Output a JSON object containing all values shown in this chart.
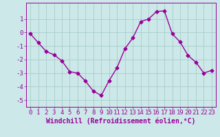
{
  "x": [
    0,
    1,
    2,
    3,
    4,
    5,
    6,
    7,
    8,
    9,
    10,
    11,
    12,
    13,
    14,
    15,
    16,
    17,
    18,
    19,
    20,
    21,
    22,
    23
  ],
  "y": [
    -0.1,
    -0.75,
    -1.4,
    -1.65,
    -2.1,
    -2.9,
    -3.0,
    -3.6,
    -4.35,
    -4.65,
    -3.55,
    -2.6,
    -1.2,
    -0.4,
    0.8,
    1.0,
    1.55,
    1.6,
    -0.1,
    -0.7,
    -1.7,
    -2.2,
    -3.0,
    -2.8
  ],
  "line_color": "#990099",
  "marker": "D",
  "marker_size": 2.5,
  "bg_color": "#cce8e8",
  "grid_color": "#b0d0d0",
  "xlabel": "Windchill (Refroidissement éolien,°C)",
  "xlim": [
    -0.5,
    23.5
  ],
  "ylim": [
    -5.5,
    2.2
  ],
  "yticks": [
    1,
    0,
    -1,
    -2,
    -3,
    -4,
    -5
  ],
  "xticks": [
    0,
    1,
    2,
    3,
    4,
    5,
    6,
    7,
    8,
    9,
    10,
    11,
    12,
    13,
    14,
    15,
    16,
    17,
    18,
    19,
    20,
    21,
    22,
    23
  ],
  "tick_label_color": "#990099",
  "xlabel_color": "#990099",
  "xlabel_fontsize": 7,
  "tick_fontsize": 6.5,
  "line_width": 1.0
}
